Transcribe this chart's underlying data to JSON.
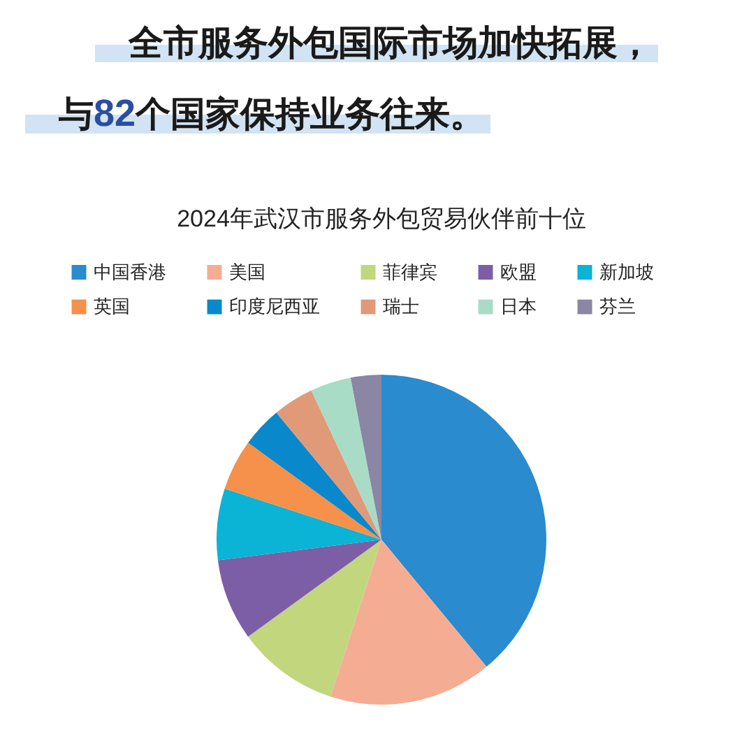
{
  "chart_data": {
    "type": "pie",
    "title": "2024年武汉市服务外包贸易伙伴前十位",
    "annotations": [
      "全市服务外包国际市场加快拓展，",
      "与82个国家保持业务往来。"
    ],
    "categories": [
      "中国香港",
      "美国",
      "菲律宾",
      "欧盟",
      "新加坡",
      "英国",
      "印度尼西亚",
      "瑞士",
      "日本",
      "芬兰"
    ],
    "values": [
      39,
      16,
      10,
      8,
      7,
      5,
      4,
      4,
      4,
      3
    ],
    "colors": [
      "#2a8bcf",
      "#f4ad93",
      "#c2d67e",
      "#7c5ea6",
      "#0bb3d4",
      "#f5914a",
      "#0a88cc",
      "#e09a78",
      "#a9dcc6",
      "#8a86a4"
    ],
    "legend": "top"
  }
}
